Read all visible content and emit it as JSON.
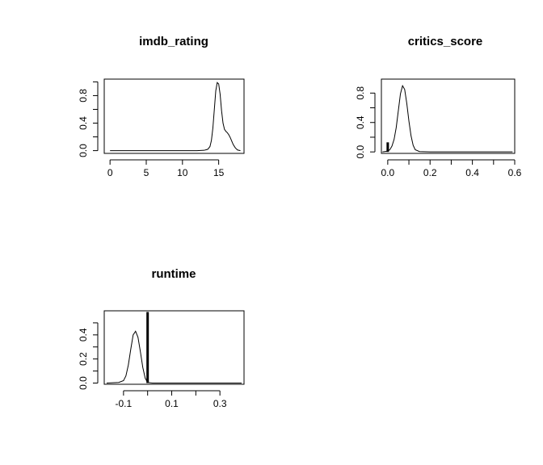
{
  "chart_data": [
    {
      "type": "line",
      "title": "imdb_rating",
      "xlabel": "",
      "ylabel": "",
      "xlim": [
        -0.8,
        18.5
      ],
      "ylim": [
        -0.04,
        1.04
      ],
      "x_ticks": [
        0,
        5,
        10,
        15
      ],
      "x_tick_labels": [
        "0",
        "5",
        "10",
        "15"
      ],
      "y_ticks": [
        0.0,
        0.4,
        0.8
      ],
      "y_tick_labels": [
        "0.0",
        "0.4",
        "0.8"
      ],
      "y_minor_ticks": [
        0.2,
        0.6,
        1.0
      ],
      "grid": false,
      "series": [
        {
          "x": [
            0,
            2,
            4,
            6,
            8,
            10,
            12,
            13,
            13.5,
            13.8,
            14.0,
            14.2,
            14.4,
            14.6,
            14.8,
            15.0,
            15.2,
            15.4,
            15.6,
            15.8,
            16.0,
            16.2,
            16.4,
            16.6,
            16.8,
            17.0,
            17.3,
            17.6,
            18.0
          ],
          "y": [
            0,
            0,
            0,
            0,
            0,
            0,
            0,
            0.005,
            0.02,
            0.06,
            0.15,
            0.33,
            0.6,
            0.87,
            0.99,
            0.97,
            0.82,
            0.58,
            0.4,
            0.31,
            0.28,
            0.26,
            0.23,
            0.19,
            0.14,
            0.09,
            0.04,
            0.01,
            0.0
          ]
        }
      ],
      "spikes": []
    },
    {
      "type": "line",
      "title": "critics_score",
      "xlabel": "",
      "ylabel": "",
      "xlim": [
        -0.03,
        0.6
      ],
      "ylim": [
        -0.02,
        0.99
      ],
      "x_ticks": [
        0.0,
        0.2,
        0.4,
        0.6
      ],
      "x_tick_labels": [
        "0.0",
        "0.2",
        "0.4",
        "0.6"
      ],
      "x_minor_ticks": [
        0.1,
        0.3,
        0.5
      ],
      "y_ticks": [
        0.0,
        0.4,
        0.8
      ],
      "y_tick_labels": [
        "0.0",
        "0.4",
        "0.8"
      ],
      "y_minor_ticks": [
        0.2,
        0.6
      ],
      "grid": false,
      "series": [
        {
          "x": [
            -0.025,
            0.0,
            0.01,
            0.02,
            0.03,
            0.04,
            0.05,
            0.06,
            0.07,
            0.08,
            0.09,
            0.1,
            0.11,
            0.12,
            0.13,
            0.15,
            0.2,
            0.3,
            0.4,
            0.5,
            0.59
          ],
          "y": [
            0,
            0.01,
            0.03,
            0.08,
            0.17,
            0.33,
            0.56,
            0.79,
            0.9,
            0.85,
            0.66,
            0.42,
            0.22,
            0.09,
            0.03,
            0.005,
            0,
            0,
            0,
            0,
            0
          ]
        }
      ],
      "spikes": [
        {
          "x": 0.0,
          "y0": 0.0,
          "y1": 0.13
        }
      ]
    },
    {
      "type": "line",
      "title": "runtime",
      "xlabel": "",
      "ylabel": "",
      "xlim": [
        -0.18,
        0.4
      ],
      "ylim": [
        -0.01,
        0.6
      ],
      "x_ticks": [
        -0.1,
        0.1,
        0.3
      ],
      "x_tick_labels": [
        "-0.1",
        "0.1",
        "0.3"
      ],
      "x_minor_ticks": [
        0.0,
        0.2
      ],
      "y_ticks": [
        0.0,
        0.2,
        0.4
      ],
      "y_tick_labels": [
        "0.0",
        "0.2",
        "0.4"
      ],
      "y_minor_ticks": [
        0.1,
        0.3,
        0.5
      ],
      "grid": false,
      "series": [
        {
          "x": [
            -0.17,
            -0.12,
            -0.1,
            -0.09,
            -0.08,
            -0.07,
            -0.06,
            -0.05,
            -0.04,
            -0.03,
            -0.02,
            -0.01,
            0.0,
            0.02,
            0.1,
            0.2,
            0.3,
            0.39
          ],
          "y": [
            0,
            0.005,
            0.02,
            0.06,
            0.15,
            0.28,
            0.4,
            0.43,
            0.38,
            0.26,
            0.13,
            0.04,
            0.005,
            0,
            0,
            0,
            0,
            0
          ]
        }
      ],
      "spikes": [
        {
          "x": 0.0,
          "y0": 0.0,
          "y1": 0.59
        }
      ]
    }
  ]
}
